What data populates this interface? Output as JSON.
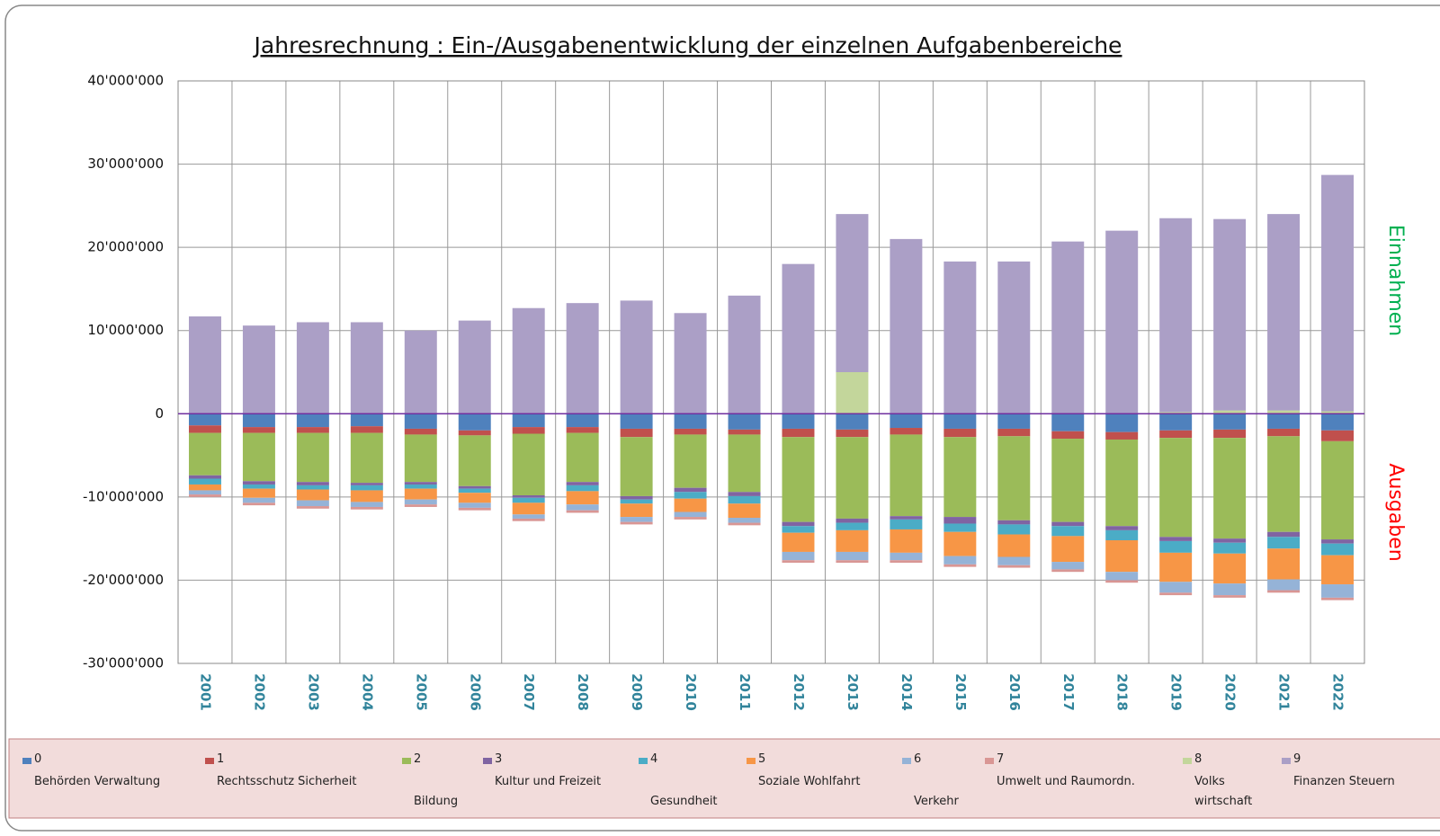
{
  "chart_data": {
    "type": "bar",
    "stacked": true,
    "title": "Jahresrechnung :  Ein-/Ausgabenentwicklung der einzelnen Aufgabenbereiche",
    "side_labels": {
      "income": "Einnahmen",
      "expense": "Ausgaben"
    },
    "categories": [
      "2001",
      "2002",
      "2003",
      "2004",
      "2005",
      "2006",
      "2007",
      "2008",
      "2009",
      "2010",
      "2011",
      "2012",
      "2013",
      "2014",
      "2015",
      "2016",
      "2017",
      "2018",
      "2019",
      "2020",
      "2021",
      "2022"
    ],
    "ylim": [
      -30000000,
      40000000
    ],
    "yticks": [
      {
        "value": -30000000,
        "label": "-30'000'000"
      },
      {
        "value": -20000000,
        "label": "-20'000'000"
      },
      {
        "value": -10000000,
        "label": "-10'000'000"
      },
      0,
      {
        "value": 10000000,
        "label": "10'000'000"
      },
      {
        "value": 20000000,
        "label": "20'000'000"
      },
      {
        "value": 30000000,
        "label": "30'000'000"
      },
      {
        "value": 40000000,
        "label": "40'000'000"
      }
    ],
    "grid": true,
    "legend": "bottom",
    "series": [
      {
        "name": "0",
        "label": "Behörden Verwaltung",
        "color": "#4f81bd",
        "values": [
          -1400000,
          -1600000,
          -1600000,
          -1500000,
          -1800000,
          -2000000,
          -1600000,
          -1600000,
          -1800000,
          -1800000,
          -1900000,
          -1800000,
          -1900000,
          -1700000,
          -1800000,
          -1800000,
          -2100000,
          -2200000,
          -2000000,
          -1900000,
          -1800000,
          -2000000
        ]
      },
      {
        "name": "1",
        "label": "Rechtsschutz Sicherheit",
        "color": "#c0504d",
        "values": [
          -900000,
          -700000,
          -700000,
          -800000,
          -700000,
          -600000,
          -800000,
          -700000,
          -1000000,
          -700000,
          -600000,
          -1000000,
          -900000,
          -800000,
          -1000000,
          -900000,
          -900000,
          -900000,
          -900000,
          -1000000,
          -900000,
          -1300000
        ]
      },
      {
        "name": "2",
        "label": "Bildung",
        "color": "#9bbb59",
        "values": [
          -5100000,
          -5800000,
          -5900000,
          -6000000,
          -5700000,
          -6100000,
          -7400000,
          -5900000,
          -7100000,
          -6400000,
          -6900000,
          -10200000,
          -9800000,
          -9800000,
          -9600000,
          -10100000,
          -10000000,
          -10400000,
          -11900000,
          -12100000,
          -11500000,
          -11800000
        ]
      },
      {
        "name": "3",
        "label": "Kultur und Freizeit",
        "color": "#8064a2",
        "values": [
          -400000,
          -400000,
          -400000,
          -300000,
          -300000,
          -300000,
          -300000,
          -400000,
          -400000,
          -500000,
          -500000,
          -500000,
          -500000,
          -400000,
          -800000,
          -500000,
          -500000,
          -500000,
          -500000,
          -500000,
          -600000,
          -500000
        ]
      },
      {
        "name": "4",
        "label": "Gesundheit",
        "color": "#4bacc6",
        "values": [
          -700000,
          -500000,
          -500000,
          -600000,
          -500000,
          -500000,
          -600000,
          -700000,
          -500000,
          -800000,
          -900000,
          -800000,
          -900000,
          -1200000,
          -1000000,
          -1200000,
          -1200000,
          -1200000,
          -1400000,
          -1300000,
          -1400000,
          -1400000
        ]
      },
      {
        "name": "5",
        "label": "Soziale Wohlfahrt",
        "color": "#f79646",
        "values": [
          -700000,
          -1100000,
          -1300000,
          -1400000,
          -1300000,
          -1200000,
          -1400000,
          -1600000,
          -1600000,
          -1600000,
          -1700000,
          -2300000,
          -2600000,
          -2800000,
          -2900000,
          -2700000,
          -3100000,
          -3800000,
          -3500000,
          -3600000,
          -3700000,
          -3500000
        ]
      },
      {
        "name": "6",
        "label": "Verkehr",
        "color": "#95b3d7",
        "values": [
          -500000,
          -600000,
          -700000,
          -600000,
          -600000,
          -600000,
          -500000,
          -700000,
          -600000,
          -600000,
          -600000,
          -1000000,
          -1000000,
          -900000,
          -1000000,
          -1000000,
          -900000,
          -1000000,
          -1300000,
          -1400000,
          -1300000,
          -1600000
        ]
      },
      {
        "name": "7",
        "label": "Umwelt und Raumordn.",
        "color": "#d99694",
        "values": [
          -300000,
          -300000,
          -300000,
          -300000,
          -300000,
          -300000,
          -300000,
          -300000,
          -300000,
          -300000,
          -300000,
          -300000,
          -300000,
          -300000,
          -300000,
          -300000,
          -300000,
          -300000,
          -300000,
          -300000,
          -300000,
          -300000
        ]
      },
      {
        "name": "8",
        "label": "Volks wirtschaft",
        "color": "#c3d69b",
        "values": [
          0,
          0,
          0,
          0,
          0,
          0,
          0,
          0,
          0,
          0,
          0,
          0,
          5000000,
          0,
          0,
          0,
          0,
          0,
          200000,
          400000,
          400000,
          300000
        ]
      },
      {
        "name": "9",
        "label": "Finanzen Steuern",
        "color": "#ab9fc6",
        "values": [
          11700000,
          10600000,
          11000000,
          11000000,
          10000000,
          11200000,
          12700000,
          13300000,
          13600000,
          12100000,
          14200000,
          18000000,
          19000000,
          21000000,
          18300000,
          18300000,
          20700000,
          22000000,
          23300000,
          23000000,
          23600000,
          28400000
        ]
      }
    ]
  }
}
